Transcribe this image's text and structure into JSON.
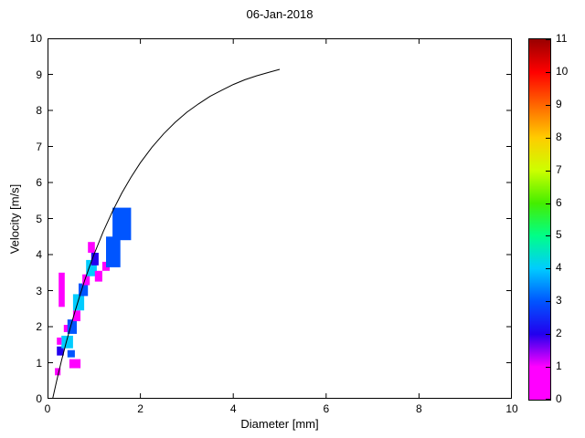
{
  "figure": {
    "background": "#ffffff",
    "axis_color": "#000000"
  },
  "chart_data": {
    "type": "heatmap",
    "title": "06-Jan-2018",
    "xlabel": "Diameter [mm]",
    "ylabel": "Velocity [m/s]",
    "xlim": [
      0,
      10
    ],
    "ylim": [
      0,
      10
    ],
    "xticks": [
      0,
      2,
      4,
      6,
      8,
      10
    ],
    "yticks": [
      0,
      1,
      2,
      3,
      4,
      5,
      6,
      7,
      8,
      9,
      10
    ],
    "grid": false,
    "legend": "none",
    "colorbar": {
      "position": "right",
      "min": 0,
      "max": 11,
      "ticks": [
        0,
        1,
        2,
        3,
        4,
        5,
        6,
        7,
        8,
        9,
        10,
        11
      ],
      "colors": [
        "#ff00ff",
        "#ff00ff",
        "#2200ee",
        "#0055ff",
        "#00ccff",
        "#00ff88",
        "#44ee00",
        "#ccff00",
        "#ffcc00",
        "#ff6600",
        "#ff0000",
        "#990000"
      ]
    },
    "terminal_velocity_curve": {
      "name": "terminal-velocity-reference-curve",
      "color": "#000000",
      "points": [
        [
          0.11,
          0.0
        ],
        [
          0.2,
          0.52
        ],
        [
          0.3,
          1.05
        ],
        [
          0.4,
          1.55
        ],
        [
          0.5,
          2.02
        ],
        [
          0.6,
          2.46
        ],
        [
          0.7,
          2.88
        ],
        [
          0.8,
          3.28
        ],
        [
          0.9,
          3.65
        ],
        [
          1.0,
          4.0
        ],
        [
          1.2,
          4.64
        ],
        [
          1.4,
          5.2
        ],
        [
          1.6,
          5.71
        ],
        [
          1.8,
          6.15
        ],
        [
          2.0,
          6.55
        ],
        [
          2.25,
          6.98
        ],
        [
          2.5,
          7.35
        ],
        [
          2.75,
          7.67
        ],
        [
          3.0,
          7.95
        ],
        [
          3.25,
          8.18
        ],
        [
          3.5,
          8.39
        ],
        [
          3.75,
          8.56
        ],
        [
          4.0,
          8.72
        ],
        [
          4.25,
          8.85
        ],
        [
          4.5,
          8.96
        ],
        [
          4.75,
          9.05
        ],
        [
          5.0,
          9.14
        ]
      ]
    },
    "cells": [
      {
        "d": [
          0.16,
          0.28
        ],
        "v": [
          0.65,
          0.85
        ],
        "count": 1
      },
      {
        "d": [
          0.47,
          0.71
        ],
        "v": [
          0.85,
          1.1
        ],
        "count": 1
      },
      {
        "d": [
          0.2,
          0.35
        ],
        "v": [
          1.2,
          1.45
        ],
        "count": 2
      },
      {
        "d": [
          0.43,
          0.59
        ],
        "v": [
          1.15,
          1.35
        ],
        "count": 3
      },
      {
        "d": [
          0.3,
          0.55
        ],
        "v": [
          1.4,
          1.75
        ],
        "count": 4
      },
      {
        "d": [
          0.2,
          0.3
        ],
        "v": [
          1.5,
          1.7
        ],
        "count": 1
      },
      {
        "d": [
          0.35,
          0.47
        ],
        "v": [
          1.85,
          2.05
        ],
        "count": 1
      },
      {
        "d": [
          0.43,
          0.63
        ],
        "v": [
          1.8,
          2.2
        ],
        "count": 3
      },
      {
        "d": [
          0.55,
          0.71
        ],
        "v": [
          2.15,
          2.45
        ],
        "count": 1
      },
      {
        "d": [
          0.24,
          0.37
        ],
        "v": [
          2.55,
          3.5
        ],
        "count": 1
      },
      {
        "d": [
          0.55,
          0.79
        ],
        "v": [
          2.45,
          2.9
        ],
        "count": 4
      },
      {
        "d": [
          0.67,
          0.87
        ],
        "v": [
          2.85,
          3.2
        ],
        "count": 3
      },
      {
        "d": [
          0.75,
          0.91
        ],
        "v": [
          3.15,
          3.45
        ],
        "count": 1
      },
      {
        "d": [
          0.83,
          1.06
        ],
        "v": [
          3.4,
          3.85
        ],
        "count": 4
      },
      {
        "d": [
          0.94,
          1.1
        ],
        "v": [
          3.7,
          4.05
        ],
        "count": 2
      },
      {
        "d": [
          0.87,
          1.02
        ],
        "v": [
          4.05,
          4.35
        ],
        "count": 1
      },
      {
        "d": [
          1.02,
          1.18
        ],
        "v": [
          3.25,
          3.55
        ],
        "count": 1
      },
      {
        "d": [
          1.18,
          1.34
        ],
        "v": [
          3.55,
          3.8
        ],
        "count": 1
      },
      {
        "d": [
          1.26,
          1.57
        ],
        "v": [
          3.65,
          4.5
        ],
        "count": 3
      },
      {
        "d": [
          1.4,
          1.8
        ],
        "v": [
          4.4,
          5.3
        ],
        "count": 3
      }
    ]
  }
}
